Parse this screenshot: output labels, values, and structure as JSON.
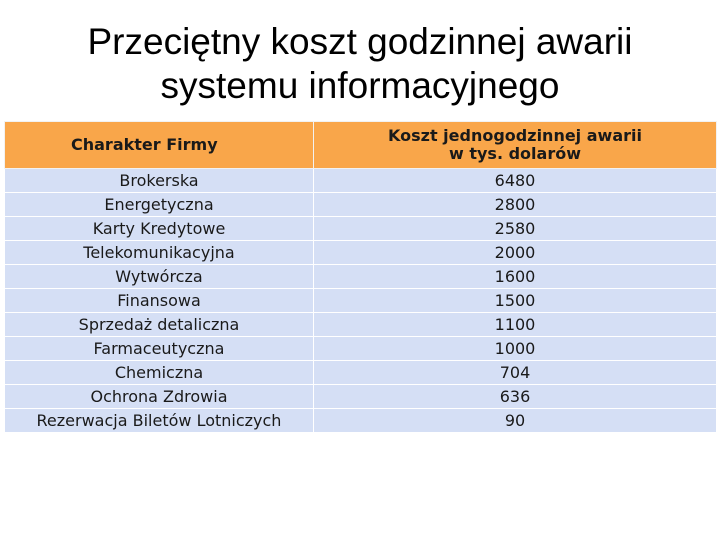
{
  "title": {
    "line1": "Przeciętny koszt godzinnej awarii",
    "line2": "systemu informacyjnego"
  },
  "table": {
    "headers": {
      "company_type": "Charakter Firmy",
      "cost_line1": "Koszt jednogodzinnej awarii",
      "cost_line2": "w tys. dolarów"
    },
    "rows": [
      {
        "company": "Brokerska",
        "cost": "6480"
      },
      {
        "company": "Energetyczna",
        "cost": "2800"
      },
      {
        "company": "Karty Kredytowe",
        "cost": "2580"
      },
      {
        "company": "Telekomunikacyjna",
        "cost": "2000"
      },
      {
        "company": "Wytwórcza",
        "cost": "1600"
      },
      {
        "company": "Finansowa",
        "cost": "1500"
      },
      {
        "company": "Sprzedaż detaliczna",
        "cost": "1100"
      },
      {
        "company": "Farmaceutyczna",
        "cost": "1000"
      },
      {
        "company": "Chemiczna",
        "cost": "704"
      },
      {
        "company": "Ochrona Zdrowia",
        "cost": "636"
      },
      {
        "company": "Rezerwacja Biletów Lotniczych",
        "cost": "90"
      }
    ]
  },
  "colors": {
    "header_bg": "#f9a64a",
    "row_bg": "#d5dff5"
  }
}
